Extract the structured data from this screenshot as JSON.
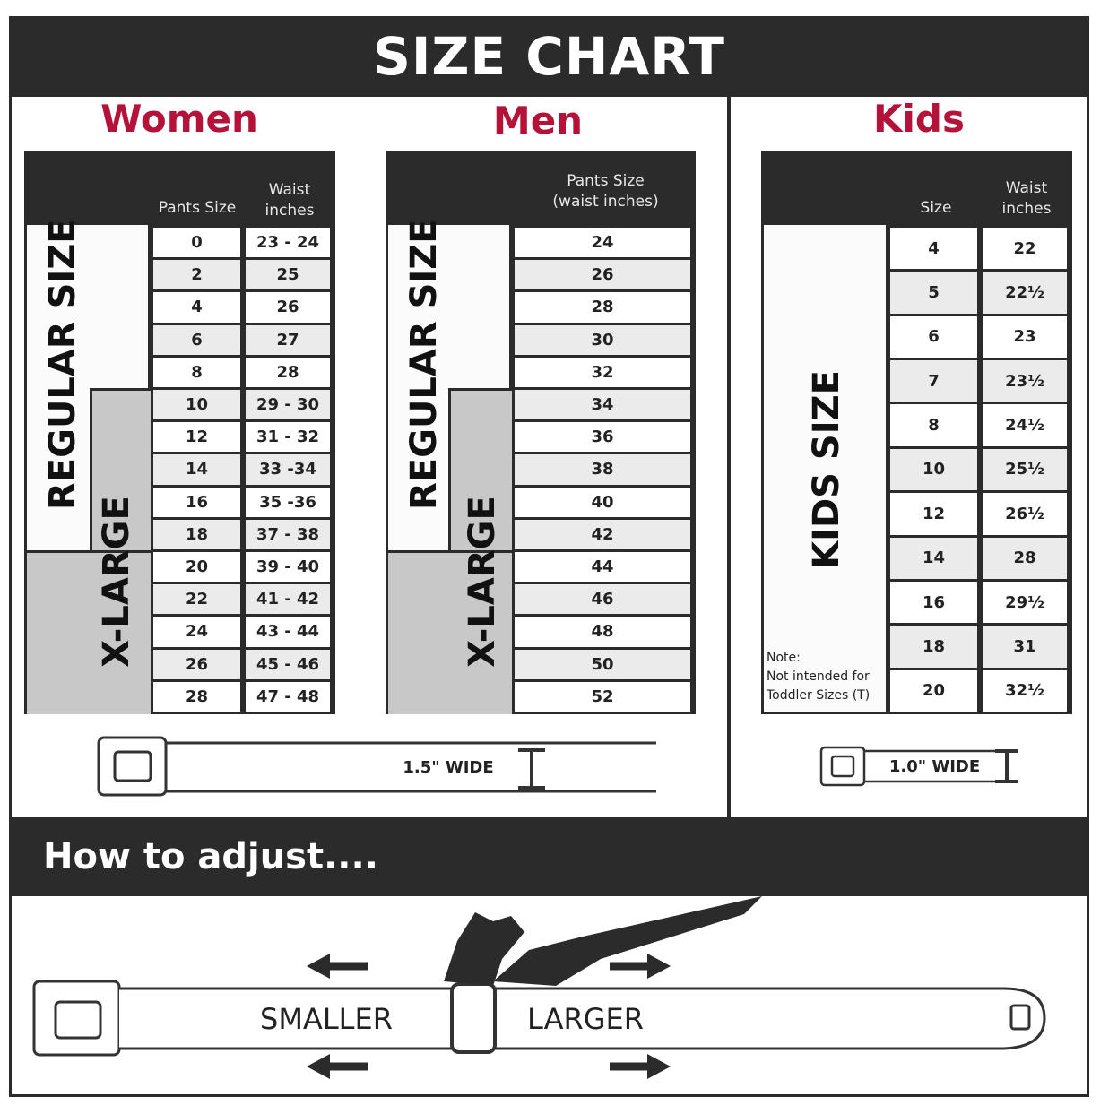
{
  "title": "SIZE CHART",
  "accent_color": "#b5123a",
  "women": {
    "heading": "Women",
    "col_headers": [
      "Pants Size",
      "Waist\ninches"
    ],
    "regular_label": "REGULAR SIZE",
    "xlarge_label": "X-LARGE",
    "rows": [
      [
        "0",
        "23 - 24"
      ],
      [
        "2",
        "25"
      ],
      [
        "4",
        "26"
      ],
      [
        "6",
        "27"
      ],
      [
        "8",
        "28"
      ],
      [
        "10",
        "29 - 30"
      ],
      [
        "12",
        "31 - 32"
      ],
      [
        "14",
        "33 -34"
      ],
      [
        "16",
        "35 -36"
      ],
      [
        "18",
        "37 - 38"
      ],
      [
        "20",
        "39 - 40"
      ],
      [
        "22",
        "41 - 42"
      ],
      [
        "24",
        "43 - 44"
      ],
      [
        "26",
        "45 - 46"
      ],
      [
        "28",
        "47 - 48"
      ]
    ],
    "belt_width": "1.5\" WIDE"
  },
  "men": {
    "heading": "Men",
    "col_header": "Pants Size\n(waist inches)",
    "regular_label": "REGULAR SIZE",
    "xlarge_label": "X-LARGE",
    "rows": [
      "24",
      "26",
      "28",
      "30",
      "32",
      "34",
      "36",
      "38",
      "40",
      "42",
      "44",
      "46",
      "48",
      "50",
      "52"
    ]
  },
  "kids": {
    "heading": "Kids",
    "col_headers": [
      "Size",
      "Waist\ninches"
    ],
    "size_label": "KIDS SIZE",
    "note": "Note:\nNot intended for\nToddler Sizes (T)",
    "rows": [
      [
        "4",
        "22"
      ],
      [
        "5",
        "22½"
      ],
      [
        "6",
        "23"
      ],
      [
        "7",
        "23½"
      ],
      [
        "8",
        "24½"
      ],
      [
        "10",
        "25½"
      ],
      [
        "12",
        "26½"
      ],
      [
        "14",
        "28"
      ],
      [
        "16",
        "29½"
      ],
      [
        "18",
        "31"
      ],
      [
        "20",
        "32½"
      ]
    ],
    "belt_width": "1.0\" WIDE"
  },
  "adjust": {
    "heading": "How to adjust....",
    "smaller_label": "SMALLER",
    "larger_label": "LARGER"
  }
}
